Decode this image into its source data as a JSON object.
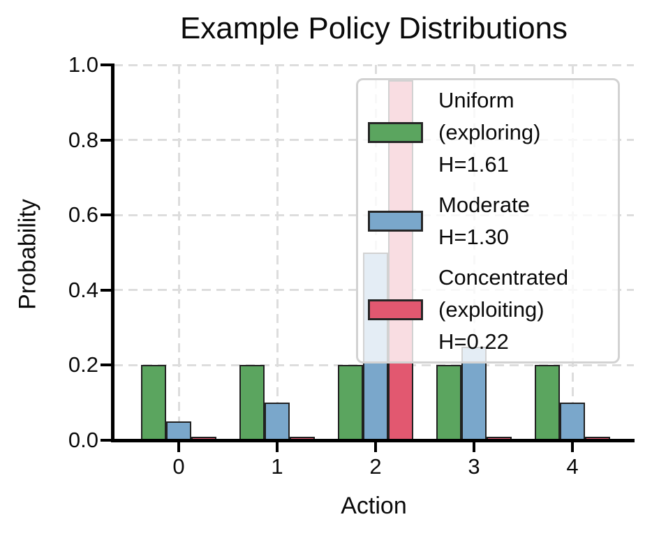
{
  "figure": {
    "title": "Example Policy Distributions",
    "background_color": "#ffffff"
  },
  "chart_data": {
    "type": "bar",
    "title": "Example Policy Distributions",
    "xlabel": "Action",
    "ylabel": "Probability",
    "categories": [
      "0",
      "1",
      "2",
      "3",
      "4"
    ],
    "ylim": [
      0.0,
      1.0
    ],
    "yticks": [
      0.0,
      0.2,
      0.4,
      0.6,
      0.8,
      1.0
    ],
    "ytick_labels": [
      "0.0",
      "0.2",
      "0.4",
      "0.6",
      "0.8",
      "1.0"
    ],
    "grid": true,
    "grid_style": "dashed",
    "legend_position": "upper right",
    "series": [
      {
        "name": "Uniform\n(exploring)\nH=1.61",
        "color": "#5ba55f",
        "values": [
          0.2,
          0.2,
          0.2,
          0.2,
          0.2
        ]
      },
      {
        "name": "Moderate\nH=1.30",
        "color": "#7aa7cb",
        "values": [
          0.05,
          0.1,
          0.5,
          0.25,
          0.1
        ]
      },
      {
        "name": "Concentrated\n(exploiting)\nH=0.22",
        "color": "#e25870",
        "values": [
          0.01,
          0.01,
          0.96,
          0.01,
          0.01
        ]
      }
    ],
    "colors": {
      "bar_edge": "#212121",
      "gridline": "#dddddd",
      "legend_border": "#d2d2d2",
      "axis": "#000000"
    }
  }
}
